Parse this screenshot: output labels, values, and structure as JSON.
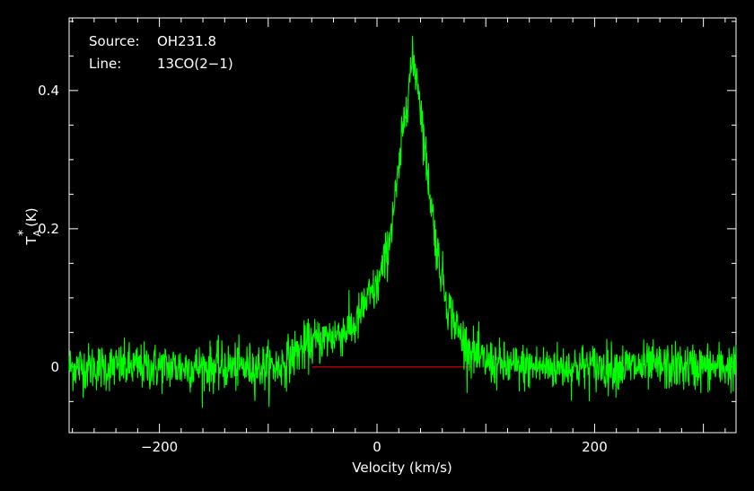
{
  "chart_data": {
    "type": "line",
    "title": "",
    "xlabel": "Velocity (km/s)",
    "ylabel": "(K)",
    "ylabel_symbol": "T",
    "ylabel_subscript": "A",
    "ylabel_superscript": "*",
    "xlim": [
      -283,
      330
    ],
    "ylim": [
      -0.095,
      0.505
    ],
    "xticks": [
      -200,
      0,
      200
    ],
    "xtick_labels": [
      "−200",
      "0",
      "200"
    ],
    "yticks": [
      0,
      0.2,
      0.4
    ],
    "ytick_labels": [
      "0",
      "0.2",
      "0.4"
    ],
    "grid": false,
    "info": [
      {
        "key": "Source:",
        "value": "OH231.8"
      },
      {
        "key": "Line:",
        "value": "13CO(2−1)"
      }
    ],
    "series": [
      {
        "color": "#00ff00",
        "noise_rms": 0.017,
        "profile_x": [
          -283,
          -90,
          -75,
          -60,
          -40,
          -20,
          -10,
          0,
          10,
          20,
          25,
          30,
          33,
          37,
          40,
          45,
          55,
          65,
          75,
          85,
          95,
          120,
          330
        ],
        "profile_y": [
          0,
          0,
          0.02,
          0.035,
          0.045,
          0.06,
          0.095,
          0.115,
          0.17,
          0.28,
          0.36,
          0.42,
          0.44,
          0.42,
          0.38,
          0.3,
          0.17,
          0.09,
          0.05,
          0.025,
          0.01,
          0,
          0
        ]
      },
      {
        "color": "#ff0000",
        "x": [
          -60,
          88
        ],
        "y": [
          0,
          0
        ]
      }
    ]
  }
}
